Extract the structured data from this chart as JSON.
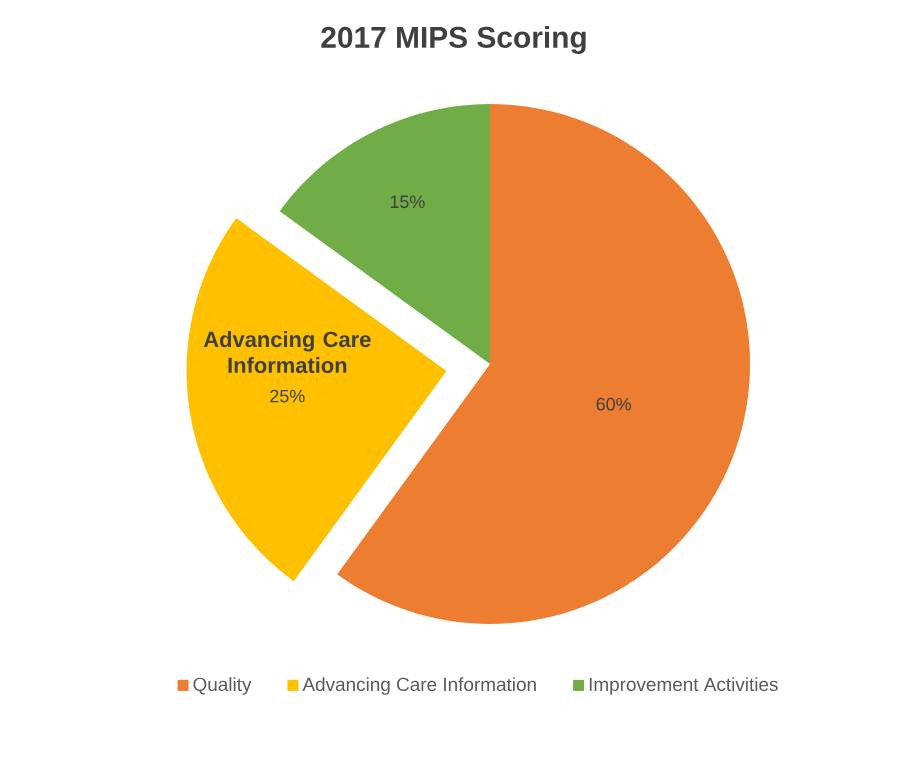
{
  "chart_data": {
    "type": "pie",
    "title": "2017 MIPS Scoring",
    "categories": [
      "Quality",
      "Advancing Care Information",
      "Improvement Activities"
    ],
    "values": [
      60,
      25,
      15
    ],
    "colors": [
      "#ed7d31",
      "#ffc000",
      "#70ad47"
    ],
    "value_labels": [
      "60%",
      "25%",
      "15%"
    ],
    "annotations": [
      "Advancing Care Information"
    ],
    "legend": "bottom"
  }
}
